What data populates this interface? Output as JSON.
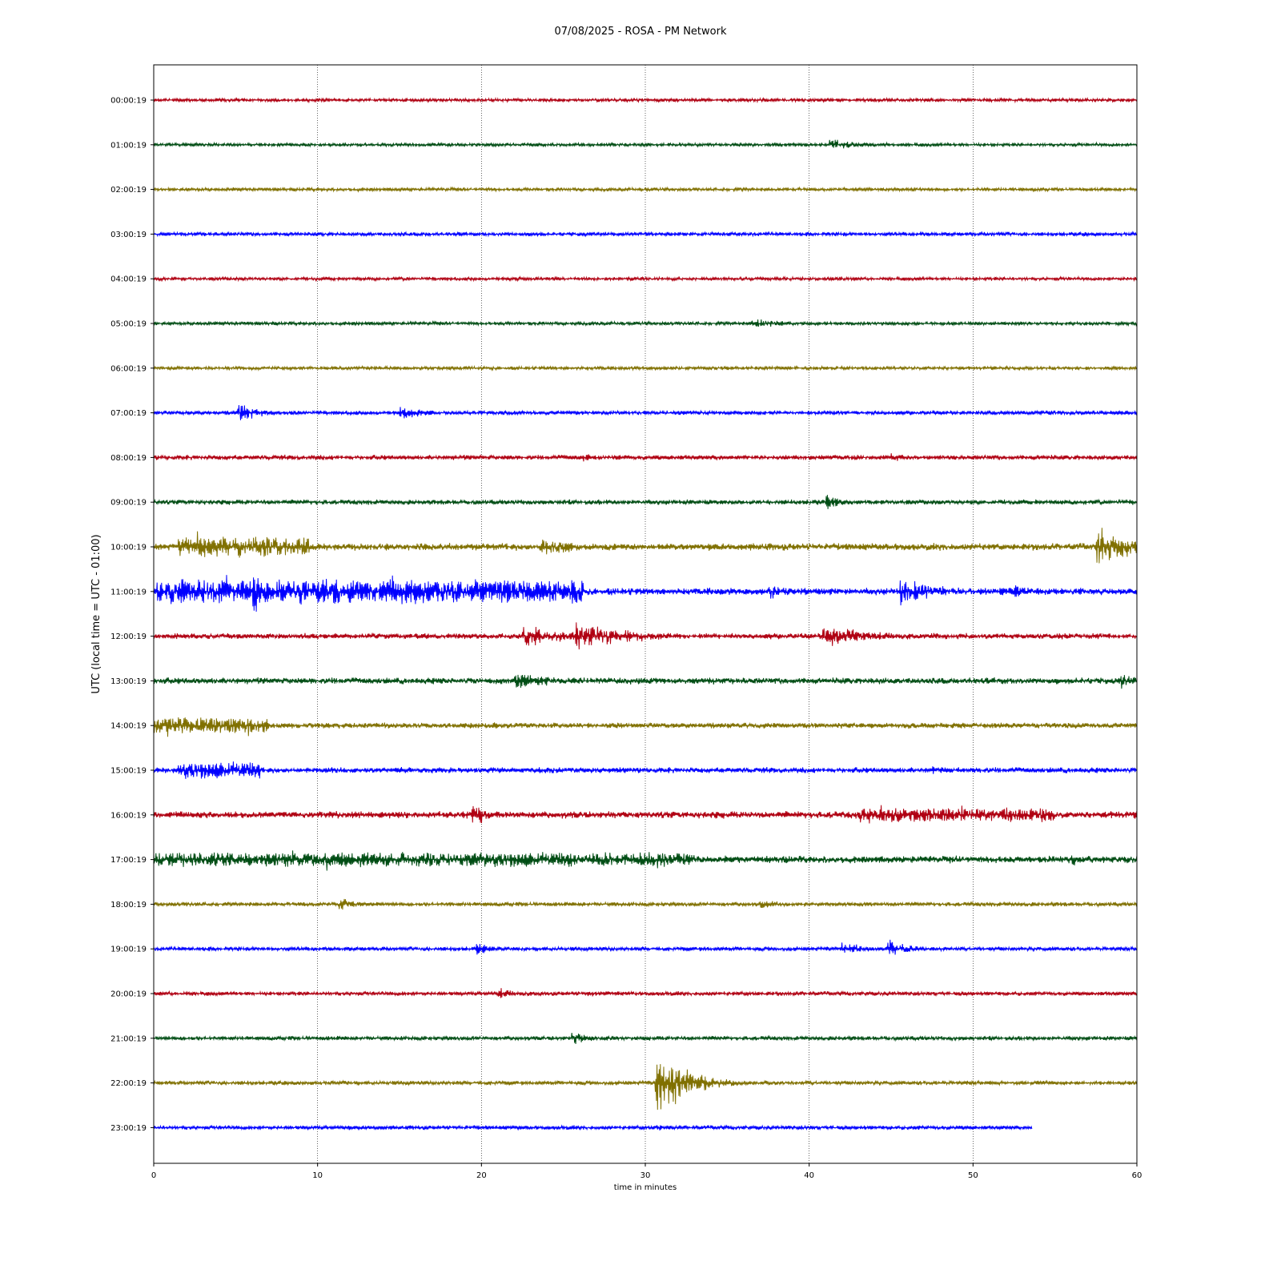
{
  "chart_data": {
    "type": "line",
    "title": "07/08/2025 - ROSA - PM Network",
    "xlabel": "time in minutes",
    "ylabel": "UTC (local time = UTC - 01:00)",
    "xlim": [
      0,
      60
    ],
    "x_ticks": [
      0,
      10,
      20,
      30,
      40,
      50,
      60
    ],
    "grid": "vertical dotted at x ticks",
    "legend": "none",
    "colors": [
      "#b00012",
      "#004d14",
      "#807000",
      "#0000ff"
    ],
    "series": [
      {
        "label": "00:00:19",
        "color": "#b00012",
        "end": 60,
        "amp": 2.5,
        "events": []
      },
      {
        "label": "01:00:19",
        "color": "#004d14",
        "end": 60,
        "amp": 2.5,
        "events": [
          {
            "t": 41.2,
            "a": 10,
            "d": 1.5
          }
        ]
      },
      {
        "label": "02:00:19",
        "color": "#807000",
        "end": 60,
        "amp": 2.5,
        "events": []
      },
      {
        "label": "03:00:19",
        "color": "#0000ff",
        "end": 60,
        "amp": 2.8,
        "events": []
      },
      {
        "label": "04:00:19",
        "color": "#b00012",
        "end": 60,
        "amp": 2.5,
        "events": []
      },
      {
        "label": "05:00:19",
        "color": "#004d14",
        "end": 60,
        "amp": 2.5,
        "events": [
          {
            "t": 36.5,
            "a": 7,
            "d": 2.5
          }
        ]
      },
      {
        "label": "06:00:19",
        "color": "#807000",
        "end": 60,
        "amp": 2.5,
        "events": []
      },
      {
        "label": "07:00:19",
        "color": "#0000ff",
        "end": 60,
        "amp": 3,
        "events": [
          {
            "t": 5.1,
            "a": 18,
            "d": 1.2
          },
          {
            "t": 15,
            "a": 10,
            "d": 2
          }
        ]
      },
      {
        "label": "08:00:19",
        "color": "#b00012",
        "end": 60,
        "amp": 3.5,
        "events": [
          {
            "t": 26,
            "a": 8,
            "d": 1
          },
          {
            "t": 45,
            "a": 6,
            "d": 1.5
          }
        ]
      },
      {
        "label": "09:00:19",
        "color": "#004d14",
        "end": 60,
        "amp": 3.5,
        "events": [
          {
            "t": 41,
            "a": 12,
            "d": 1.2
          },
          {
            "t": 35,
            "a": 5,
            "d": 0.8
          }
        ]
      },
      {
        "label": "10:00:19",
        "color": "#807000",
        "end": 60,
        "amp": 5,
        "events": [
          {
            "t": 1.5,
            "a": 20,
            "d": 8
          },
          {
            "t": 23.5,
            "a": 14,
            "d": 3
          },
          {
            "t": 57.5,
            "a": 30,
            "d": 2.5
          }
        ]
      },
      {
        "label": "11:00:19",
        "color": "#0000ff",
        "end": 60,
        "amp": 5,
        "events": [
          {
            "t": 0.2,
            "a": 24,
            "d": 26
          },
          {
            "t": 6,
            "a": 45,
            "d": 0.6
          },
          {
            "t": 45.5,
            "a": 22,
            "d": 2.5
          },
          {
            "t": 37.5,
            "a": 12,
            "d": 1.5
          },
          {
            "t": 52.5,
            "a": 10,
            "d": 2
          }
        ]
      },
      {
        "label": "12:00:19",
        "color": "#b00012",
        "end": 60,
        "amp": 4,
        "events": [
          {
            "t": 22.5,
            "a": 18,
            "d": 3
          },
          {
            "t": 25.7,
            "a": 22,
            "d": 3.5
          },
          {
            "t": 40.8,
            "a": 18,
            "d": 3
          }
        ]
      },
      {
        "label": "13:00:19",
        "color": "#004d14",
        "end": 60,
        "amp": 4.5,
        "events": [
          {
            "t": 22,
            "a": 14,
            "d": 3
          },
          {
            "t": 59,
            "a": 12,
            "d": 1
          }
        ]
      },
      {
        "label": "14:00:19",
        "color": "#807000",
        "end": 60,
        "amp": 4,
        "events": [
          {
            "t": 0,
            "a": 16,
            "d": 7
          }
        ]
      },
      {
        "label": "15:00:19",
        "color": "#0000ff",
        "end": 60,
        "amp": 4,
        "events": [
          {
            "t": 1.5,
            "a": 16,
            "d": 5
          },
          {
            "t": 47.5,
            "a": 8,
            "d": 1
          }
        ]
      },
      {
        "label": "16:00:19",
        "color": "#b00012",
        "end": 60,
        "amp": 5,
        "events": [
          {
            "t": 19.4,
            "a": 20,
            "d": 1
          },
          {
            "t": 43,
            "a": 14,
            "d": 12
          }
        ]
      },
      {
        "label": "17:00:19",
        "color": "#004d14",
        "end": 60,
        "amp": 5,
        "events": [
          {
            "t": 0,
            "a": 14,
            "d": 33
          },
          {
            "t": 56,
            "a": 12,
            "d": 0.8
          }
        ]
      },
      {
        "label": "18:00:19",
        "color": "#807000",
        "end": 60,
        "amp": 3,
        "events": [
          {
            "t": 11.3,
            "a": 12,
            "d": 1
          },
          {
            "t": 37,
            "a": 6,
            "d": 2.5
          }
        ]
      },
      {
        "label": "19:00:19",
        "color": "#0000ff",
        "end": 60,
        "amp": 3,
        "events": [
          {
            "t": 19.7,
            "a": 10,
            "d": 1
          },
          {
            "t": 42,
            "a": 10,
            "d": 1.5
          },
          {
            "t": 44.8,
            "a": 14,
            "d": 1.5
          }
        ]
      },
      {
        "label": "20:00:19",
        "color": "#b00012",
        "end": 60,
        "amp": 3,
        "events": [
          {
            "t": 21,
            "a": 9,
            "d": 1
          },
          {
            "t": 26.5,
            "a": 6,
            "d": 1
          }
        ]
      },
      {
        "label": "21:00:19",
        "color": "#004d14",
        "end": 60,
        "amp": 3,
        "events": [
          {
            "t": 25.5,
            "a": 10,
            "d": 1.5
          }
        ]
      },
      {
        "label": "22:00:19",
        "color": "#807000",
        "end": 60,
        "amp": 3,
        "events": [
          {
            "t": 30.6,
            "a": 50,
            "d": 2
          }
        ]
      },
      {
        "label": "23:00:19",
        "color": "#0000ff",
        "end": 53.6,
        "amp": 3,
        "events": [
          {
            "t": 30.6,
            "a": 8,
            "d": 0.5
          }
        ]
      }
    ]
  }
}
